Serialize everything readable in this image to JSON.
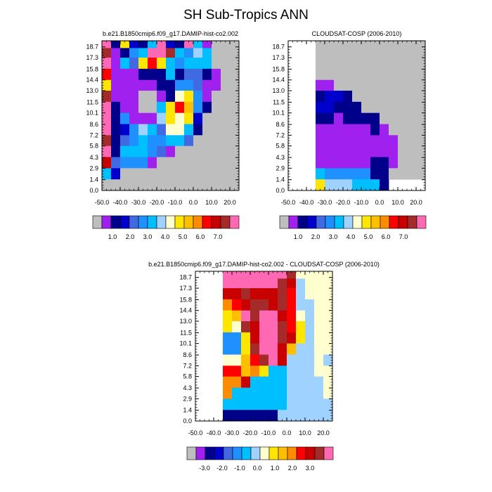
{
  "figure": {
    "title": "SH Sub-Tropics ANN"
  },
  "palettes": {
    "main": [
      "#bebebe",
      "#a020f0",
      "#00008b",
      "#0000cd",
      "#4169e1",
      "#1e90ff",
      "#00bfff",
      "#a0d2ff",
      "#ffffd0",
      "#ffe600",
      "#ffbf00",
      "#ff8c00",
      "#ff0000",
      "#c80000",
      "#a52a2a",
      "#ff69b4"
    ],
    "diff": [
      "#bebebe",
      "#a020f0",
      "#00008b",
      "#0000cd",
      "#4169e1",
      "#1e90ff",
      "#00bfff",
      "#a0d2ff",
      "#ffffd0",
      "#ffe600",
      "#ffbf00",
      "#ff8c00",
      "#ff0000",
      "#c80000",
      "#a52a2a",
      "#ff69b4"
    ]
  },
  "chart_data": [
    {
      "type": "heatmap",
      "title": "b.e21.B1850cmip6.f09_g17.DAMIP-hist-co2.002",
      "x_ticks": [
        "-50.0",
        "-40.0",
        "-30.0",
        "-20.0",
        "-10.0",
        "0.0",
        "10.0",
        "20.0"
      ],
      "y_ticks": [
        "0.0",
        "1.4",
        "2.9",
        "4.3",
        "5.8",
        "7.2",
        "8.6",
        "10.1",
        "11.5",
        "13.0",
        "14.4",
        "15.8",
        "17.3",
        "18.7"
      ],
      "xlim": [
        -50,
        25
      ],
      "ylim": [
        0,
        19.5
      ],
      "colorbar_labels": [
        "1.0",
        "2.0",
        "3.0",
        "4.0",
        "5.0",
        "6.0",
        "7.0"
      ],
      "columns_x": [
        -47.5,
        -42.5,
        -37.5,
        -32.5,
        -27.5,
        -22.5,
        -17.5,
        -12.5,
        -7.5,
        -2.5,
        2.5,
        7.5,
        12.5,
        17.5,
        22.5
      ],
      "rows_y": [
        0.7,
        2.2,
        3.6,
        5.1,
        6.5,
        7.9,
        9.4,
        10.8,
        12.3,
        13.7,
        15.1,
        16.6,
        18.0,
        19.1
      ],
      "grid_rows_top_to_bottom": [
        "15,2,9,3,2,6,15,3,2,15,6,1,0,0,0",
        "14,1,2,5,6,15,15,14,6,5,7,6,0,0,0",
        "15,1,6,4,9,12,9,6,5,6,6,6,0,0,0",
        "12,1,1,1,2,2,2,6,2,4,4,2,1,0,0",
        "9,1,1,1,1,1,2,2,5,5,4,1,1,0,0",
        "14,1,1,1,0,0,1,2,8,9,5,1,0,0,0",
        "15,2,1,1,0,0,6,9,12,10,5,2,0,0,0",
        "15,2,5,1,1,1,7,9,8,9,3,0,0,0,0",
        "15,2,3,5,7,6,4,8,8,6,2,0,0,0,0",
        "14,2,4,5,6,5,5,6,6,4,0,0,0,0,0",
        "15,2,6,6,6,5,4,1,0,0,0,0,0,0,0",
        "13,4,5,5,5,1,0,0,0,0,0,0,0,0,0",
        "6,3,0,0,0,0,0,0,0,0,0,0,0,0,0",
        "0,0,0,0,0,0,0,0,0,0,0,0,0,0,0"
      ]
    },
    {
      "type": "heatmap",
      "title": "CLOUDSAT-COSP (2006-2010)",
      "x_ticks": [
        "-50.0",
        "-40.0",
        "-30.0",
        "-20.0",
        "-10.0",
        "0.0",
        "10.0",
        "20.0"
      ],
      "y_ticks": [
        "0.0",
        "1.4",
        "2.9",
        "4.3",
        "5.8",
        "7.2",
        "8.6",
        "10.1",
        "11.5",
        "13.0",
        "14.4",
        "15.8",
        "17.3",
        "18.7"
      ],
      "xlim": [
        -50,
        25
      ],
      "ylim": [
        0,
        19.5
      ],
      "colorbar_labels": [
        "1.0",
        "2.0",
        "3.0",
        "4.0",
        "5.0",
        "6.0",
        "7.0"
      ],
      "columns_x": [
        -47.5,
        -42.5,
        -37.5,
        -32.5,
        -27.5,
        -22.5,
        -17.5,
        -12.5,
        -7.5,
        -2.5,
        2.5,
        7.5,
        12.5,
        17.5,
        22.5
      ],
      "rows_y": [
        0.7,
        2.2,
        3.6,
        5.1,
        6.5,
        7.9,
        9.4,
        10.8,
        12.3,
        13.7,
        15.1,
        16.6,
        18.0,
        19.1
      ],
      "grid_rows_top_to_bottom": [
        "-1,-1,-1,0,0,0,0,0,0,0,0,0,0,0,0",
        "-1,-1,-1,0,0,0,0,0,0,0,0,0,0,0,0",
        "-1,-1,-1,0,0,0,0,0,0,0,0,0,0,0,0",
        "-1,-1,-1,0,0,0,0,0,0,0,0,0,0,0,0",
        "-1,-1,-1,1,1,0,0,0,0,0,0,0,0,0,0",
        "-1,-1,-1,2,3,3,2,0,0,0,0,0,0,0,0",
        "-1,-1,-1,3,3,2,2,2,0,0,0,0,0,0,0",
        "-1,-1,-1,2,2,1,2,2,2,2,0,0,0,0,0",
        "-1,-1,-1,1,1,1,1,1,1,2,1,0,0,0,0",
        "-1,-1,-1,1,1,1,1,1,1,1,1,1,0,0,0",
        "-1,-1,-1,1,1,1,1,1,1,1,1,1,0,0,0",
        "-1,-1,-1,1,1,1,1,1,1,2,2,1,0,0,0",
        "-1,-1,-1,6,5,5,5,5,5,2,2,0,0,0,0",
        "-1,-1,-1,9,7,7,7,6,6,6,2,-1,-1,-1,-1"
      ]
    },
    {
      "type": "heatmap",
      "title": "b.e21.B1850cmip6.f09_g17.DAMIP-hist-co2.002 - CLOUDSAT-COSP (2006-2010)",
      "x_ticks": [
        "-50.0",
        "-40.0",
        "-30.0",
        "-20.0",
        "-10.0",
        "0.0",
        "10.0",
        "20.0"
      ],
      "y_ticks": [
        "0.0",
        "1.4",
        "2.9",
        "4.3",
        "5.8",
        "7.2",
        "8.6",
        "10.1",
        "11.5",
        "13.0",
        "14.4",
        "15.8",
        "17.3",
        "18.7"
      ],
      "xlim": [
        -50,
        25
      ],
      "ylim": [
        0,
        19.5
      ],
      "colorbar_labels": [
        "-3.0",
        "-2.0",
        "-1.0",
        "0.0",
        "1.0",
        "2.0",
        "3.0"
      ],
      "columns_x": [
        -47.5,
        -42.5,
        -37.5,
        -32.5,
        -27.5,
        -22.5,
        -17.5,
        -12.5,
        -7.5,
        -2.5,
        2.5,
        7.5,
        12.5,
        17.5,
        22.5
      ],
      "rows_y": [
        0.7,
        2.2,
        3.6,
        5.1,
        6.5,
        7.9,
        9.4,
        10.8,
        12.3,
        13.7,
        15.1,
        16.6,
        18.0,
        19.1
      ],
      "grid_rows_top_to_bottom": [
        "-1,-1,-1,15,15,15,15,15,15,15,14,8,8,8,8",
        "-1,-1,-1,15,15,15,15,15,15,14,13,7,8,8,8",
        "-1,-1,-1,13,13,14,13,13,13,14,12,7,8,8,8",
        "-1,-1,-1,11,12,13,14,14,13,14,12,7,7,8,8",
        "-1,-1,-1,9,10,15,14,15,15,13,12,8,7,8,8",
        "-1,-1,-1,9,8,14,13,15,15,14,12,9,7,8,8",
        "-1,-1,-1,5,5,9,13,15,15,14,13,9,7,8,8",
        "-1,-1,-1,5,5,9,14,15,15,13,10,7,7,8,8",
        "-1,-1,-1,8,8,10,12,14,15,13,7,7,7,8,7",
        "-1,-1,-1,12,12,10,11,9,6,6,7,7,7,8,8",
        "-1,-1,-1,11,11,13,6,6,6,6,7,7,7,7,8",
        "-1,-1,-1,11,6,6,6,6,6,6,7,7,7,7,8",
        "-1,-1,-1,6,6,6,6,6,6,6,7,7,7,7,7",
        "-1,-1,-1,2,2,2,2,2,2,7,7,7,7,7,7"
      ]
    }
  ]
}
